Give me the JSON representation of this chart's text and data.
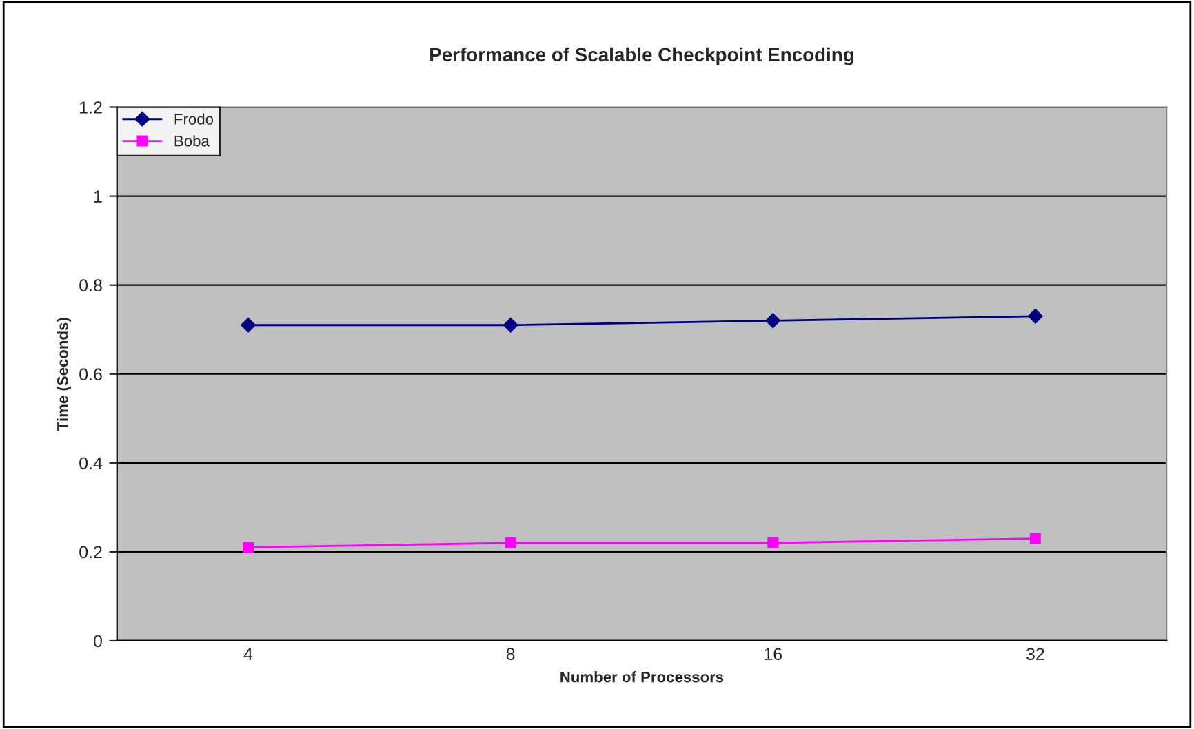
{
  "chart_data": {
    "type": "line",
    "title": "Performance of Scalable Checkpoint Encoding",
    "xlabel": "Number of Processors",
    "ylabel": "Time (Seconds)",
    "categories": [
      "4",
      "8",
      "16",
      "32"
    ],
    "series": [
      {
        "name": "Frodo",
        "color": "#000080",
        "values": [
          0.71,
          0.71,
          0.72,
          0.73
        ],
        "marker": "diamond"
      },
      {
        "name": "Boba",
        "color": "#ff00ff",
        "values": [
          0.21,
          0.22,
          0.22,
          0.23
        ],
        "marker": "square"
      }
    ],
    "ylim": [
      0,
      1.2
    ],
    "yticks": [
      0,
      0.2,
      0.4,
      0.6,
      0.8,
      1,
      1.2
    ],
    "grid": "y",
    "legend": "top left",
    "line_style": "solid"
  }
}
